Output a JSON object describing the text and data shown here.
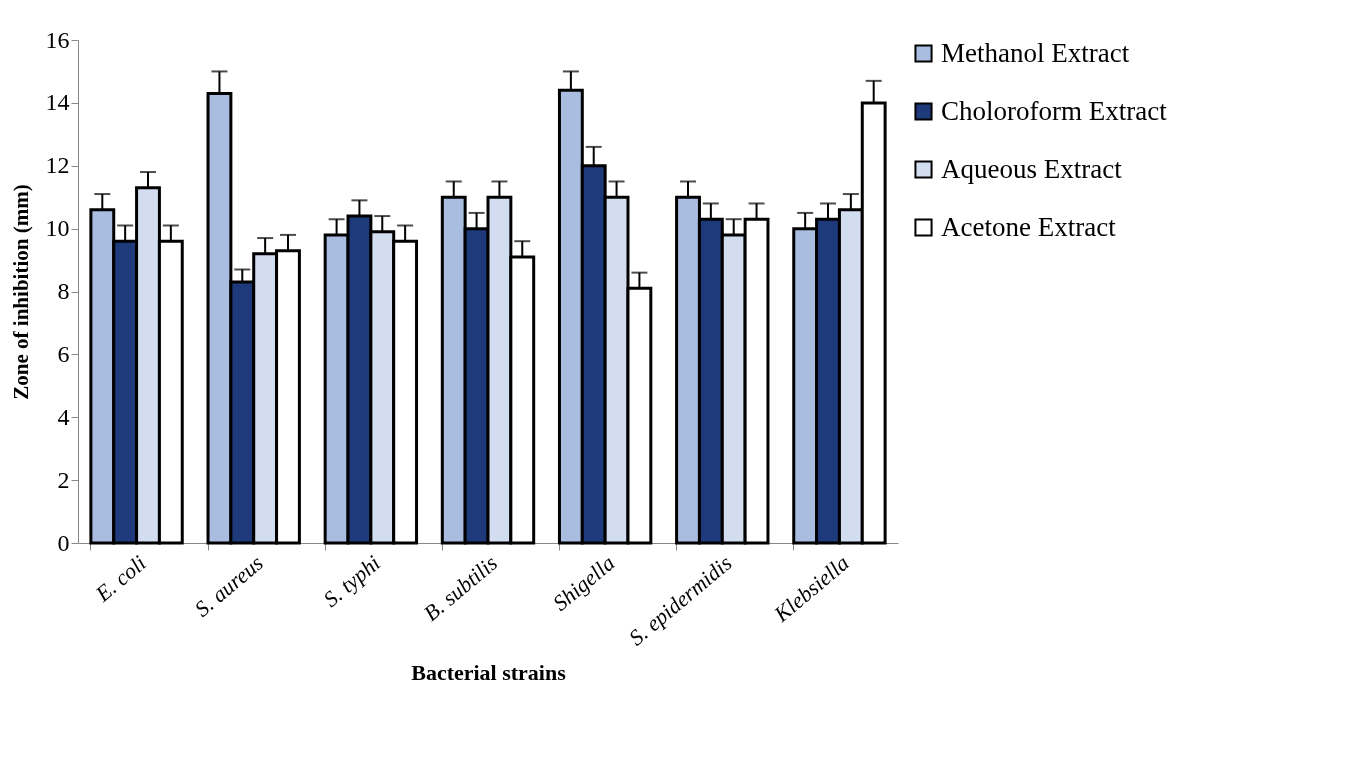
{
  "chart_data": {
    "type": "bar",
    "xlabel": "Bacterial strains",
    "ylabel": "Zone of inhibition (mm)",
    "categories": [
      "E. coli",
      "S. aureus",
      "S. typhi",
      "B. subtilis",
      "Shigella",
      "S. epidermidis",
      "Klebsiella"
    ],
    "series": [
      {
        "name": "Methanol Extract",
        "color": "#a9bde0",
        "values": [
          10.6,
          14.3,
          9.8,
          11,
          14.4,
          11,
          10
        ],
        "errors": [
          [
            10.6,
            11.1
          ],
          [
            14.3,
            15.0
          ],
          [
            9.8,
            10.3
          ],
          [
            11,
            11.5
          ],
          [
            14.4,
            15.0
          ],
          [
            11,
            11.5
          ],
          [
            10,
            10.5
          ]
        ]
      },
      {
        "name": "Choloroform Extract",
        "color": "#1f3a7a",
        "values": [
          9.6,
          8.3,
          10.4,
          10,
          12,
          10.3,
          10.3
        ],
        "errors": [
          [
            9.6,
            10.1
          ],
          [
            8.3,
            8.7
          ],
          [
            10.4,
            10.9
          ],
          [
            10,
            10.5
          ],
          [
            12,
            12.6
          ],
          [
            10.3,
            10.8
          ],
          [
            10.3,
            10.8
          ]
        ]
      },
      {
        "name": "Aqueous Extract",
        "color": "#d3ddf0",
        "values": [
          11.3,
          9.2,
          9.9,
          11,
          11,
          9.8,
          10.6
        ],
        "errors": [
          [
            11.3,
            11.8
          ],
          [
            9.2,
            9.7
          ],
          [
            9.9,
            10.4
          ],
          [
            11,
            11.5
          ],
          [
            11,
            11.5
          ],
          [
            9.8,
            10.3
          ],
          [
            10.6,
            11.1
          ]
        ]
      },
      {
        "name": "Acetone Extract",
        "color": "#ffffff",
        "values": [
          9.6,
          9.3,
          9.6,
          9.1,
          8.1,
          10.3,
          14
        ],
        "errors": [
          [
            9.6,
            10.1
          ],
          [
            9.3,
            9.8
          ],
          [
            9.6,
            10.1
          ],
          [
            9.1,
            9.6
          ],
          [
            8.1,
            8.6
          ],
          [
            10.3,
            10.8
          ],
          [
            14,
            14.7
          ]
        ]
      }
    ],
    "ylim": [
      0,
      16
    ],
    "yticks": [
      0,
      2,
      4,
      6,
      8,
      10,
      12,
      14,
      16
    ],
    "grid": false,
    "legend": "right"
  }
}
